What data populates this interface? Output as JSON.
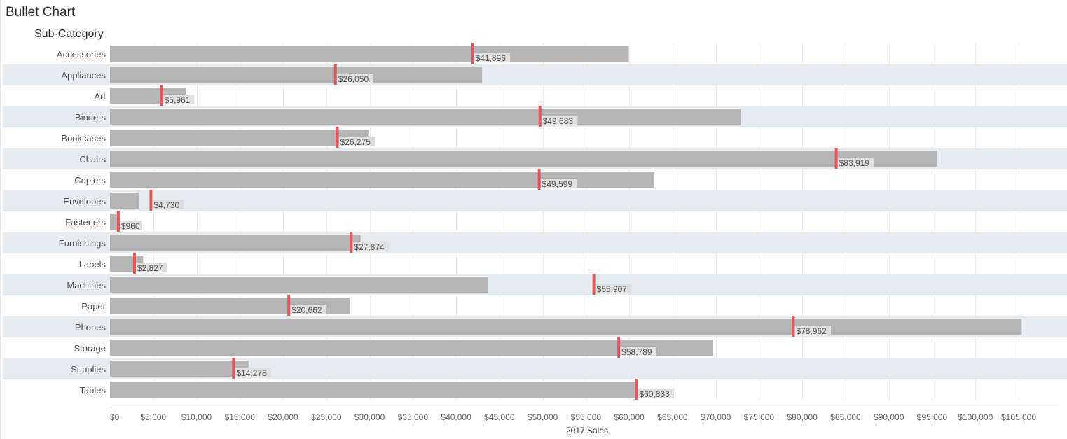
{
  "title": "Bullet Chart",
  "row_header": "Sub-Category",
  "chart_data": {
    "type": "bar",
    "subtype": "bullet",
    "title": "Bullet Chart",
    "xlabel": "2017 Sales",
    "ylabel": "Sub-Category",
    "xlim": [
      0,
      110000
    ],
    "x_ticks": [
      0,
      5000,
      10000,
      15000,
      20000,
      25000,
      30000,
      35000,
      40000,
      45000,
      50000,
      55000,
      60000,
      65000,
      70000,
      75000,
      80000,
      85000,
      90000,
      95000,
      100000,
      105000
    ],
    "x_tick_labels": [
      "$0",
      "$5,000",
      "$10,000",
      "$15,000",
      "$20,000",
      "$25,000",
      "$30,000",
      "$35,000",
      "$40,000",
      "$45,000",
      "$50,000",
      "$55,000",
      "$60,000",
      "$65,000",
      "$70,000",
      "$75,000",
      "$80,000",
      "$85,000",
      "$90,000",
      "$95,000",
      "$100,000",
      "$105,000"
    ],
    "grid": true,
    "colors": {
      "bar": "#b5b5b5",
      "marker": "#e15759",
      "band": "#e6ebf0",
      "grid": "#ececec",
      "label_bg": "#e0e0e0"
    },
    "categories": [
      "Accessories",
      "Appliances",
      "Art",
      "Binders",
      "Bookcases",
      "Chairs",
      "Copiers",
      "Envelopes",
      "Fasteners",
      "Furnishings",
      "Labels",
      "Machines",
      "Paper",
      "Phones",
      "Storage",
      "Supplies",
      "Tables"
    ],
    "bar_values": [
      59946,
      42999,
      8766,
      72877,
      29944,
      95556,
      62900,
      3322,
      802,
      28958,
      3826,
      43637,
      27710,
      105352,
      69677,
      15999,
      60926
    ],
    "marker_values": [
      41896,
      26050,
      5961,
      49683,
      26275,
      83919,
      49599,
      4730,
      960,
      27874,
      2827,
      55907,
      20662,
      78962,
      58789,
      14278,
      60833
    ],
    "marker_labels": [
      "$41,896",
      "$26,050",
      "$5,961",
      "$49,683",
      "$26,275",
      "$83,919",
      "$49,599",
      "$4,730",
      "$960",
      "$27,874",
      "$2,827",
      "$55,907",
      "$20,662",
      "$78,962",
      "$58,789",
      "$14,278",
      "$60,833"
    ]
  }
}
